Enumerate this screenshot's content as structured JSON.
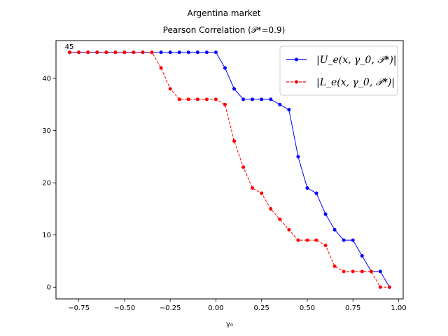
{
  "chart_data": {
    "type": "line",
    "title_line1": "Argentina market",
    "title_line2": "Pearson Correlation (𝒫*=0.9)",
    "xlabel": "γ₀",
    "ylabel": "",
    "xlim": [
      -0.875,
      1.025
    ],
    "ylim": [
      -2.25,
      47.25
    ],
    "xticks": [
      -0.75,
      -0.5,
      -0.25,
      0.0,
      0.25,
      0.5,
      0.75,
      1.0
    ],
    "xtick_labels": [
      "−0.75",
      "−0.50",
      "−0.25",
      "0.00",
      "0.25",
      "0.50",
      "0.75",
      "1.00"
    ],
    "yticks": [
      0,
      10,
      20,
      30,
      40
    ],
    "ytick_labels": [
      "0",
      "10",
      "20",
      "30",
      "40"
    ],
    "annotation": {
      "text": "45",
      "x": -0.8,
      "y": 45
    },
    "legend_position": "upper right",
    "grid": false,
    "x": [
      -0.8,
      -0.75,
      -0.7,
      -0.65,
      -0.6,
      -0.55,
      -0.5,
      -0.45,
      -0.4,
      -0.35,
      -0.3,
      -0.25,
      -0.2,
      -0.15,
      -0.1,
      -0.05,
      0.0,
      0.05,
      0.1,
      0.15,
      0.2,
      0.25,
      0.3,
      0.35,
      0.4,
      0.45,
      0.5,
      0.55,
      0.6,
      0.65,
      0.7,
      0.75,
      0.8,
      0.85,
      0.9,
      0.95
    ],
    "series": [
      {
        "name": "|U_e(x, γ_0, 𝒫*)|",
        "color": "#0000ff",
        "linestyle": "solid",
        "values": [
          45,
          45,
          45,
          45,
          45,
          45,
          45,
          45,
          45,
          45,
          45,
          45,
          45,
          45,
          45,
          45,
          45,
          42,
          38,
          36,
          36,
          36,
          36,
          35,
          34,
          25,
          19,
          18,
          14,
          11,
          9,
          9,
          6,
          3,
          3,
          0
        ]
      },
      {
        "name": "|L_e(x, γ_0, 𝒫*)|",
        "color": "#ff0000",
        "linestyle": "dashed",
        "values": [
          45,
          45,
          45,
          45,
          45,
          45,
          45,
          45,
          45,
          45,
          42,
          38,
          36,
          36,
          36,
          36,
          36,
          35,
          28,
          23,
          19,
          18,
          15,
          13,
          11,
          9,
          9,
          9,
          8,
          4,
          3,
          3,
          3,
          3,
          0,
          0
        ]
      }
    ]
  }
}
